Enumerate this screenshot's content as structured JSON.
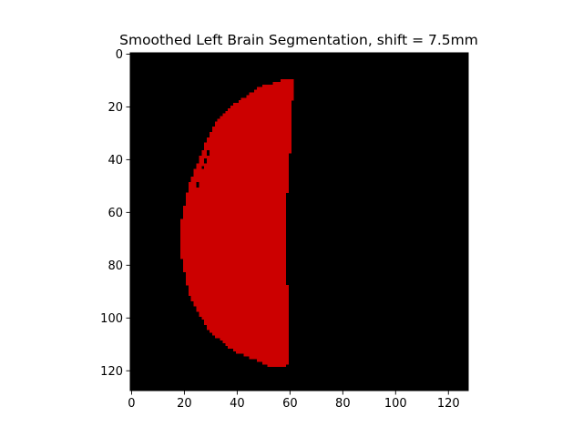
{
  "chart_data": {
    "type": "heatmap",
    "title": "Smoothed Left Brain Segmentation, shift = 7.5mm",
    "xlabel": "",
    "ylabel": "",
    "image_size": [
      128,
      128
    ],
    "xlim": [
      -0.5,
      127.5
    ],
    "ylim": [
      127.5,
      -0.5
    ],
    "xticks": [
      0,
      20,
      40,
      60,
      80,
      100,
      120
    ],
    "yticks": [
      0,
      20,
      40,
      60,
      80,
      100,
      120
    ],
    "xtick_labels": [
      "0",
      "20",
      "40",
      "60",
      "80",
      "100",
      "120"
    ],
    "ytick_labels": [
      "0",
      "20",
      "40",
      "60",
      "80",
      "100",
      "120"
    ],
    "colors": {
      "background": "#000000",
      "segmentation": "#cc0000"
    },
    "segmentation_rows": [
      {
        "y": 10,
        "x_start": 57,
        "x_end": 61
      },
      {
        "y": 12,
        "x_start": 50,
        "x_end": 61
      },
      {
        "y": 15,
        "x_start": 45,
        "x_end": 61
      },
      {
        "y": 20,
        "x_start": 38,
        "x_end": 60
      },
      {
        "y": 25,
        "x_start": 33,
        "x_end": 60
      },
      {
        "y": 30,
        "x_start": 30,
        "x_end": 60
      },
      {
        "y": 35,
        "x_start": 28,
        "x_end": 60
      },
      {
        "y": 40,
        "x_start": 26,
        "x_end": 59
      },
      {
        "y": 45,
        "x_start": 24,
        "x_end": 59
      },
      {
        "y": 50,
        "x_start": 22,
        "x_end": 59
      },
      {
        "y": 55,
        "x_start": 21,
        "x_end": 58
      },
      {
        "y": 60,
        "x_start": 20,
        "x_end": 58
      },
      {
        "y": 65,
        "x_start": 19,
        "x_end": 58
      },
      {
        "y": 70,
        "x_start": 19,
        "x_end": 58
      },
      {
        "y": 75,
        "x_start": 19,
        "x_end": 58
      },
      {
        "y": 80,
        "x_start": 20,
        "x_end": 58
      },
      {
        "y": 85,
        "x_start": 21,
        "x_end": 58
      },
      {
        "y": 90,
        "x_start": 22,
        "x_end": 59
      },
      {
        "y": 95,
        "x_start": 24,
        "x_end": 59
      },
      {
        "y": 100,
        "x_start": 27,
        "x_end": 59
      },
      {
        "y": 105,
        "x_start": 30,
        "x_end": 59
      },
      {
        "y": 110,
        "x_start": 36,
        "x_end": 59
      },
      {
        "y": 113,
        "x_start": 40,
        "x_end": 59
      },
      {
        "y": 115,
        "x_start": 45,
        "x_end": 59
      },
      {
        "y": 117,
        "x_start": 50,
        "x_end": 59
      },
      {
        "y": 118,
        "x_start": 52,
        "x_end": 58
      }
    ],
    "holes": [
      {
        "x": 29,
        "y": 37
      },
      {
        "x": 29,
        "y": 38
      },
      {
        "x": 28,
        "y": 40
      },
      {
        "x": 28,
        "y": 41
      },
      {
        "x": 27,
        "y": 43
      },
      {
        "x": 25,
        "y": 49
      },
      {
        "x": 25,
        "y": 50
      }
    ]
  }
}
